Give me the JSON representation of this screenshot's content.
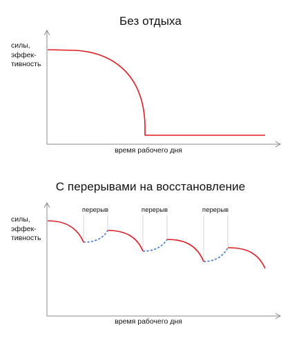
{
  "panels": [
    {
      "title": "Без отдыха",
      "ylabel": [
        "силы,",
        "эффек-",
        "тивность"
      ],
      "xlabel": "время рабочего дня"
    },
    {
      "title": "С перерывами на восстановление",
      "ylabel": [
        "силы,",
        "эффек-",
        "тивность"
      ],
      "xlabel": "время рабочего дня",
      "break_label": "перерыв",
      "breaks": [
        "перерыв",
        "перерыв",
        "перерыв"
      ]
    }
  ],
  "colors": {
    "work_curve": "#e0191f",
    "break_curve": "#2d6fd2",
    "axis": "#888888",
    "guide": "#cccccc"
  }
}
